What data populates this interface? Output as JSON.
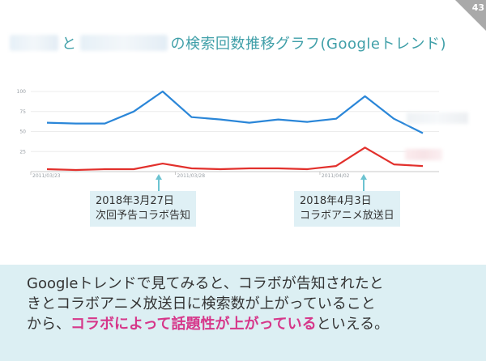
{
  "page_number": "43",
  "title": {
    "connector": "と",
    "suffix": "の検索回数推移グラフ(Googleトレンド)"
  },
  "colors": {
    "title": "#3f9fa8",
    "series_1": "#2a86d8",
    "series_2": "#e2302c",
    "callout_bg": "#dff0f5",
    "callout_arrow": "#6cc3d1",
    "highlight": "#d6378a",
    "bottom_bg": "#dceff3"
  },
  "chart_data": {
    "type": "line",
    "x_tick_labels": [
      "2011/03/23",
      "2011/03/28",
      "2011/04/02"
    ],
    "y_ticks": [
      25,
      50,
      75,
      100
    ],
    "ylim": [
      0,
      100
    ],
    "grid": true,
    "x": [
      0,
      1,
      2,
      3,
      4,
      5,
      6,
      7,
      8,
      9,
      10,
      11,
      12,
      13
    ],
    "series": [
      {
        "values": [
          61,
          60,
          60,
          75,
          100,
          68,
          65,
          61,
          65,
          62,
          66,
          94,
          66,
          48
        ]
      },
      {
        "values": [
          3,
          2,
          3,
          3,
          10,
          4,
          3,
          4,
          4,
          3,
          7,
          30,
          9,
          7
        ]
      }
    ]
  },
  "callouts": [
    {
      "date": "2018年3月27日",
      "text": "次回予告コラボ告知"
    },
    {
      "date": "2018年4月3日",
      "text": "コラボアニメ放送日"
    }
  ],
  "summary": {
    "line1": "Googleトレンドで見てみると、コラボが告知されたと",
    "line2": "きとコラボアニメ放送日に検索数が上がっていること",
    "line3_pre": "から、",
    "line3_highlight": "コラボによって話題性が上がっている",
    "line3_post": "といえる。"
  }
}
